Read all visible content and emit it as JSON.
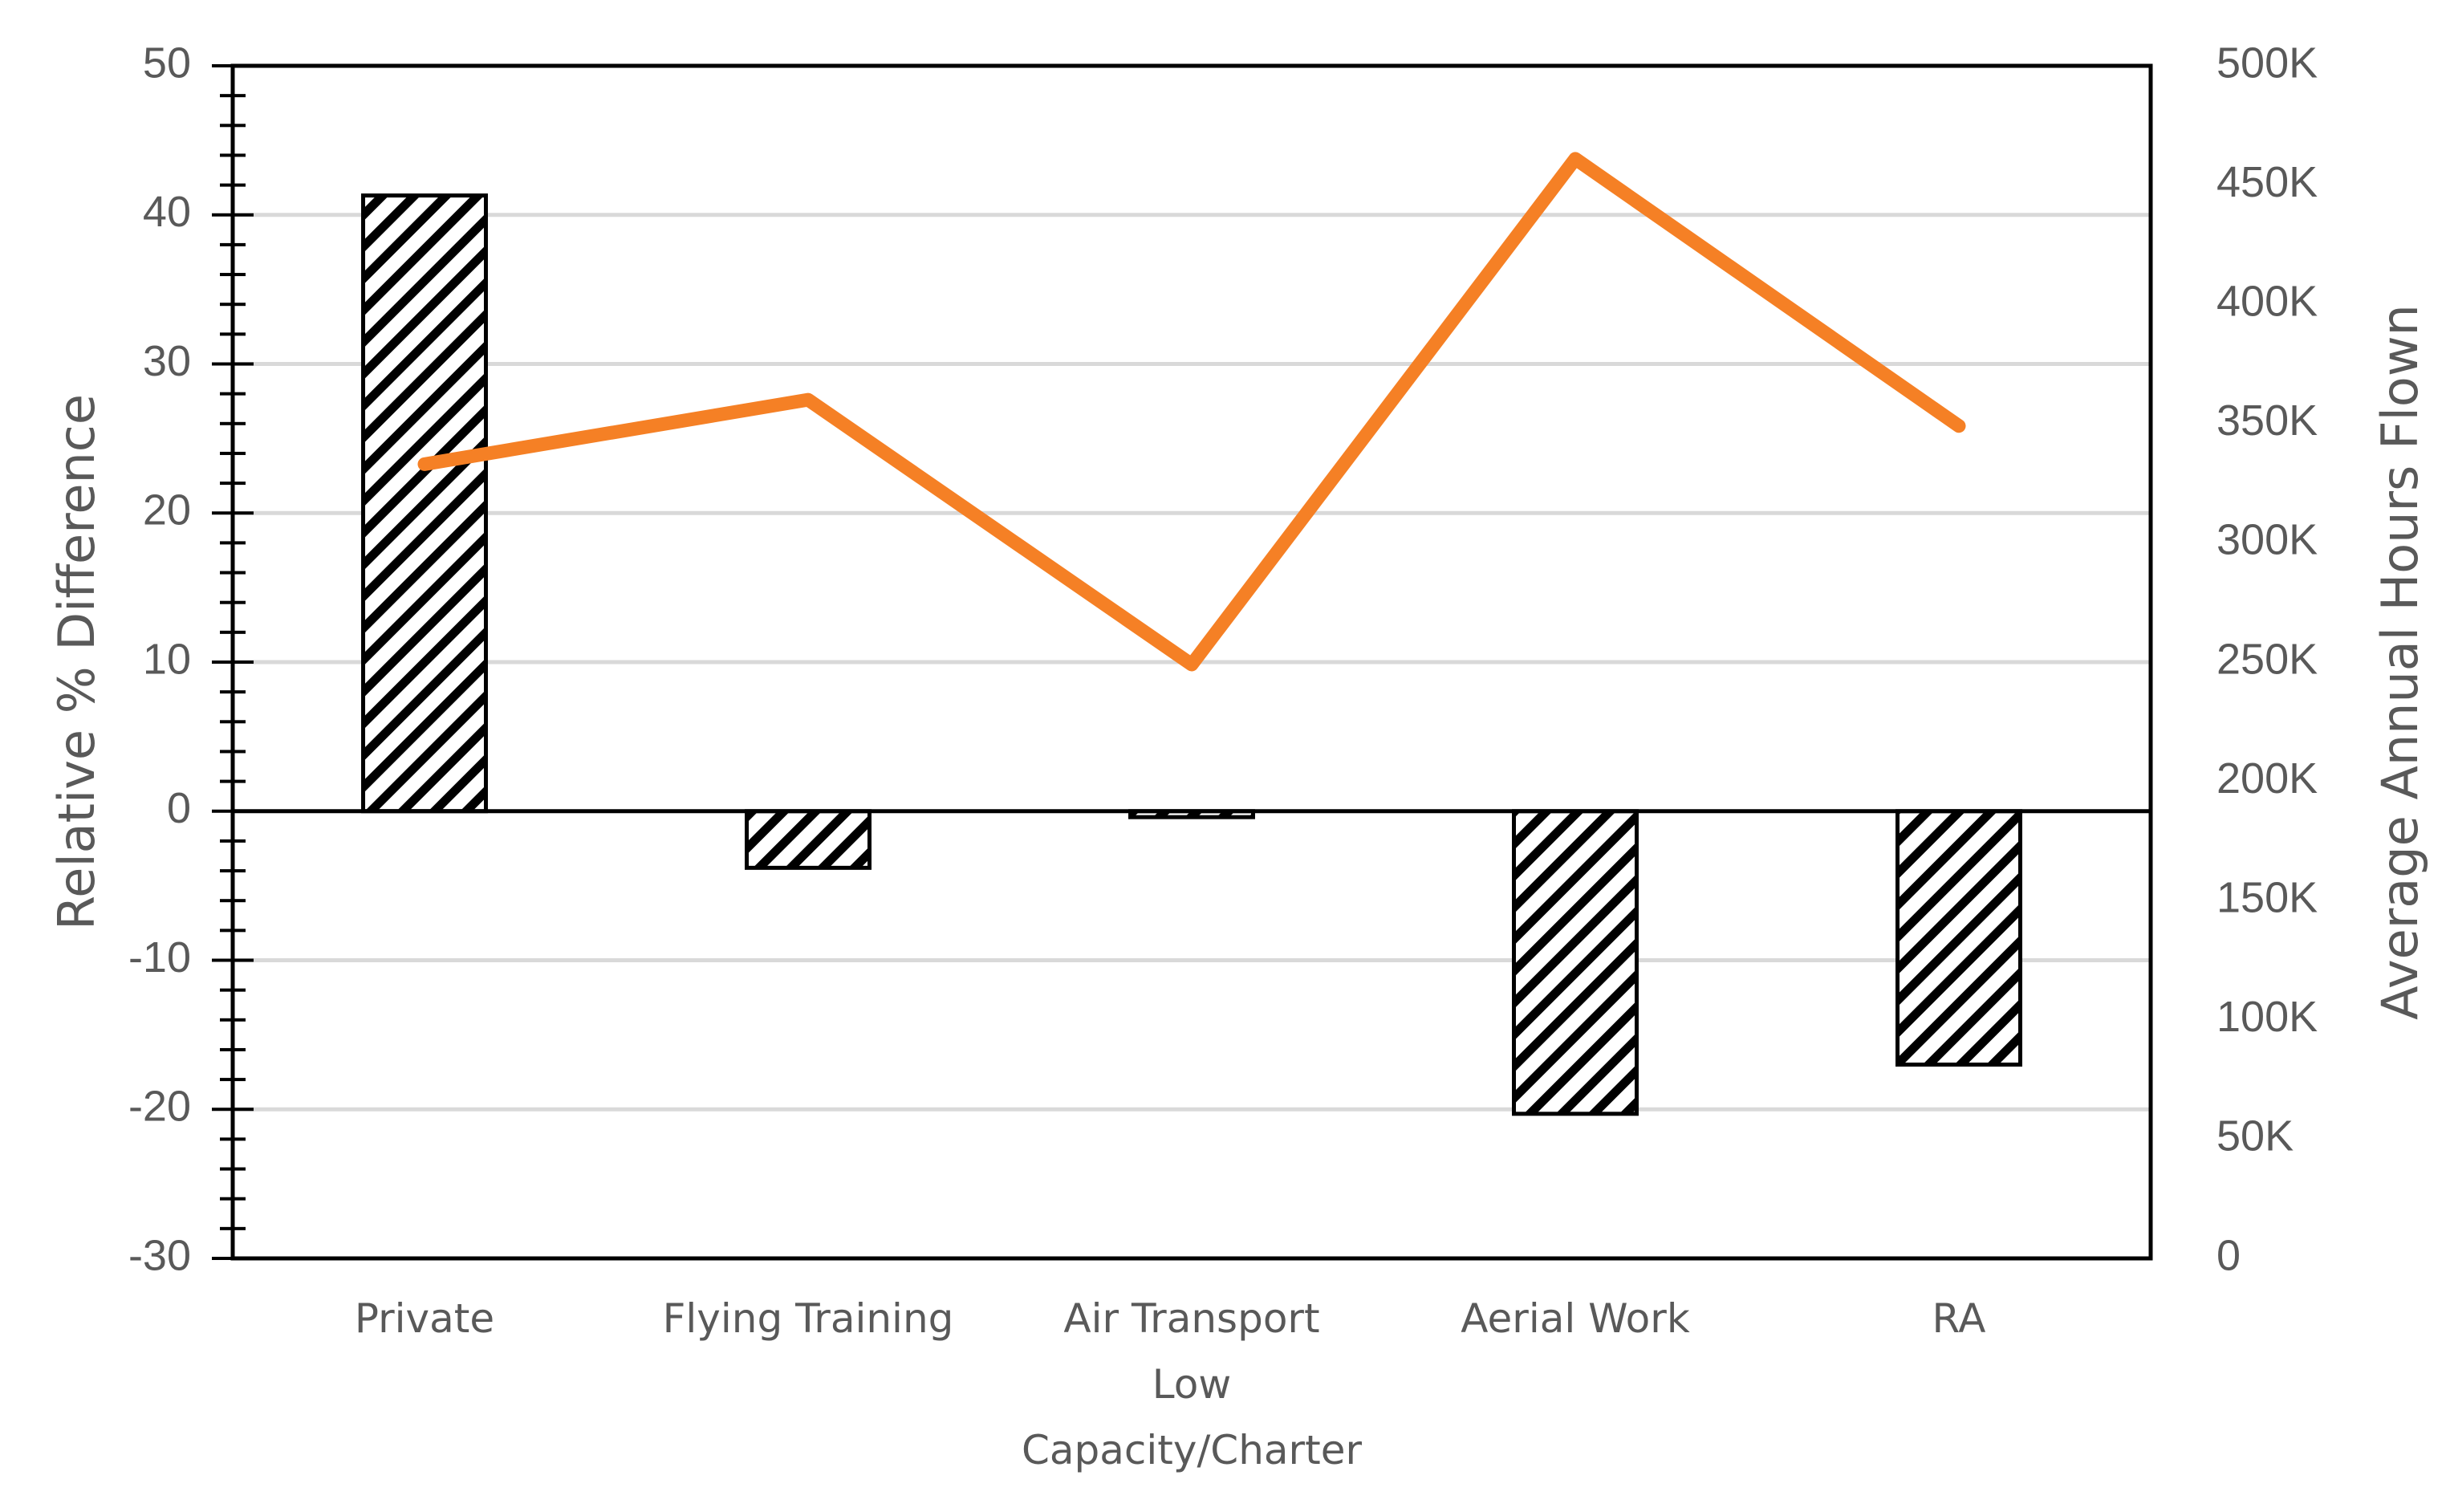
{
  "chart_data": {
    "type": "bar",
    "categories": [
      [
        "Private"
      ],
      [
        "Flying Training"
      ],
      [
        "Air Transport",
        "Low",
        "Capacity/Charter"
      ],
      [
        "Aerial Work"
      ],
      [
        "RA"
      ]
    ],
    "series": [
      {
        "type": "bar",
        "axis": "left",
        "values": [
          41.3,
          -3.8,
          -0.4,
          -20.3,
          -17.0
        ],
        "fill": "diagonal-hatch",
        "color": "#000000"
      },
      {
        "type": "line",
        "axis": "right",
        "values": [
          333000,
          360000,
          249000,
          461000,
          349000
        ],
        "color": "#F58025"
      }
    ],
    "y_left": {
      "label": "Relative % Difference",
      "range": [
        -30,
        50
      ],
      "major_step": 10,
      "minor_step": 2,
      "ticks": [
        "-30",
        "-20",
        "-10",
        "0",
        "10",
        "20",
        "30",
        "40",
        "50"
      ]
    },
    "y_right": {
      "label": "Average Annual Hours Flown",
      "range": [
        0,
        500000
      ],
      "major_step": 50000,
      "ticks": [
        "0",
        "50K",
        "100K",
        "150K",
        "200K",
        "250K",
        "300K",
        "350K",
        "400K",
        "450K",
        "500K"
      ]
    },
    "grid": "horizontal-major",
    "legend": "none"
  }
}
